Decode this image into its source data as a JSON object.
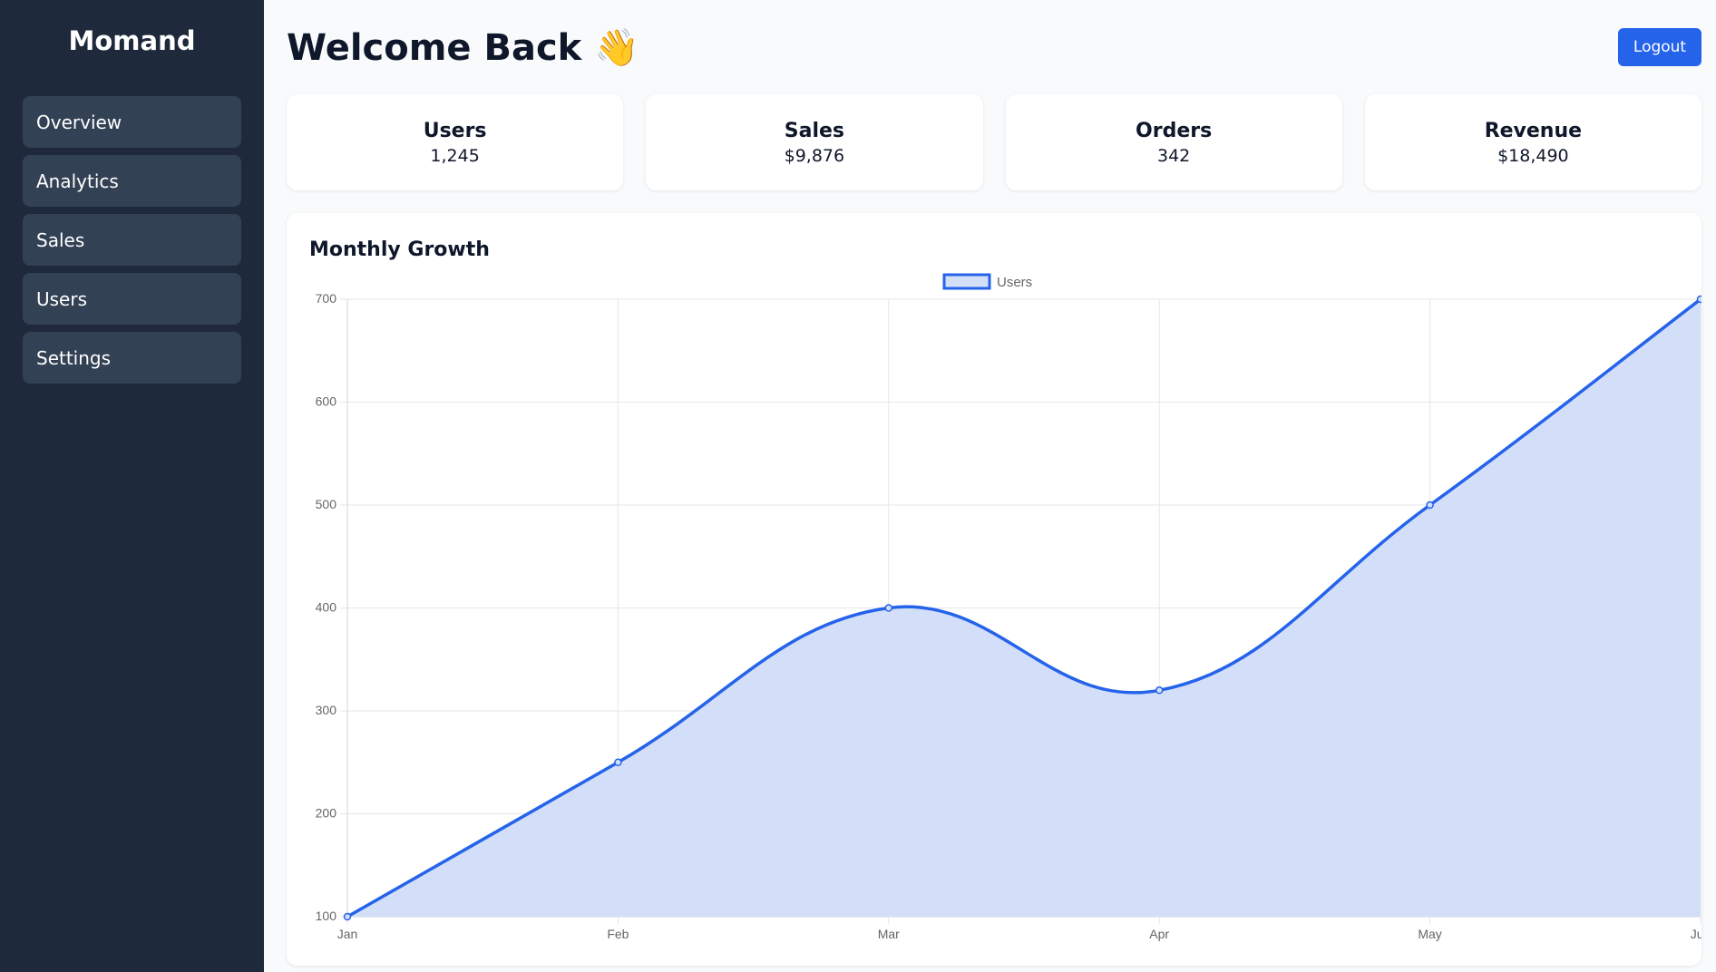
{
  "sidebar": {
    "brand": "Momand",
    "items": [
      {
        "label": "Overview"
      },
      {
        "label": "Analytics"
      },
      {
        "label": "Sales"
      },
      {
        "label": "Users"
      },
      {
        "label": "Settings"
      }
    ]
  },
  "header": {
    "title": "Welcome Back 👋",
    "logout_label": "Logout"
  },
  "stats": [
    {
      "label": "Users",
      "value": "1,245"
    },
    {
      "label": "Sales",
      "value": "$9,876"
    },
    {
      "label": "Orders",
      "value": "342"
    },
    {
      "label": "Revenue",
      "value": "$18,490"
    }
  ],
  "chart_card": {
    "title": "Monthly Growth"
  },
  "colors": {
    "accent": "#2563eb",
    "sidebar_bg": "#1e293b",
    "nav_item_bg": "#334155",
    "area_fill": "#d3dff8"
  },
  "chart_data": {
    "type": "area",
    "categories": [
      "Jan",
      "Feb",
      "Mar",
      "Apr",
      "May",
      "Jun"
    ],
    "series": [
      {
        "name": "Users",
        "values": [
          100,
          250,
          400,
          320,
          500,
          700
        ]
      }
    ],
    "ylim": [
      100,
      700
    ],
    "yticks": [
      100,
      200,
      300,
      400,
      500,
      600,
      700
    ],
    "legend": "top-center",
    "grid": true,
    "smooth": true
  }
}
